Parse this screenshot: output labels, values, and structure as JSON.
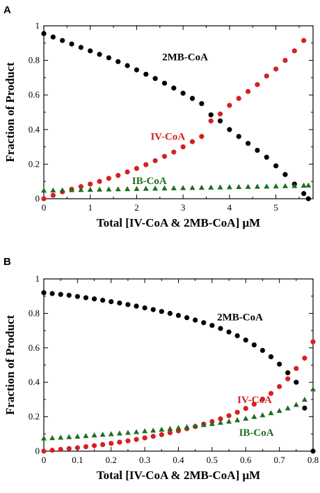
{
  "chart_data": [
    {
      "type": "scatter",
      "panel": "A",
      "xlabel": "Total [IV-CoA & 2MB-CoA] μM",
      "ylabel": "Fraction of Product",
      "xlim": [
        0,
        5.8
      ],
      "ylim": [
        0,
        1
      ],
      "xticks": [
        0,
        1,
        2,
        3,
        4,
        5
      ],
      "yticks": [
        0,
        0.2,
        0.4,
        0.6,
        0.8,
        1
      ],
      "tick_labels_x": [
        "0",
        "1",
        "2",
        "3",
        "4",
        "5"
      ],
      "tick_labels_y": [
        "0",
        "0.2",
        "0.4",
        "0.6",
        "0.8",
        "1"
      ],
      "grid": false,
      "series": [
        {
          "name": "2MB-CoA",
          "marker": "circle",
          "color": "#000000",
          "x": [
            0,
            0.2,
            0.4,
            0.6,
            0.8,
            1.0,
            1.2,
            1.4,
            1.6,
            1.8,
            2.0,
            2.2,
            2.4,
            2.6,
            2.8,
            3.0,
            3.2,
            3.4,
            3.6,
            3.8,
            4.0,
            4.2,
            4.4,
            4.6,
            4.8,
            5.0,
            5.2,
            5.4,
            5.6,
            5.7
          ],
          "y": [
            0.955,
            0.935,
            0.915,
            0.895,
            0.875,
            0.855,
            0.835,
            0.815,
            0.793,
            0.77,
            0.745,
            0.72,
            0.695,
            0.668,
            0.64,
            0.61,
            0.58,
            0.55,
            0.485,
            0.45,
            0.4,
            0.36,
            0.32,
            0.28,
            0.24,
            0.19,
            0.14,
            0.085,
            0.03,
            0.0
          ]
        },
        {
          "name": "IV-CoA",
          "marker": "circle",
          "color": "#d62020",
          "x": [
            0,
            0.2,
            0.4,
            0.6,
            0.8,
            1.0,
            1.2,
            1.4,
            1.6,
            1.8,
            2.0,
            2.2,
            2.4,
            2.6,
            2.8,
            3.0,
            3.2,
            3.4,
            3.6,
            3.8,
            4.0,
            4.2,
            4.4,
            4.6,
            4.8,
            5.0,
            5.2,
            5.4,
            5.6
          ],
          "y": [
            0.0,
            0.02,
            0.04,
            0.055,
            0.07,
            0.085,
            0.1,
            0.118,
            0.135,
            0.155,
            0.175,
            0.197,
            0.22,
            0.245,
            0.27,
            0.3,
            0.33,
            0.36,
            0.45,
            0.49,
            0.54,
            0.58,
            0.62,
            0.66,
            0.71,
            0.75,
            0.8,
            0.855,
            0.915
          ]
        },
        {
          "name": "IB-CoA",
          "marker": "triangle",
          "color": "#1e6e1e",
          "x": [
            0,
            0.2,
            0.4,
            0.6,
            0.8,
            1.0,
            1.2,
            1.4,
            1.6,
            1.8,
            2.0,
            2.2,
            2.4,
            2.6,
            2.8,
            3.0,
            3.2,
            3.4,
            3.6,
            3.8,
            4.0,
            4.2,
            4.4,
            4.6,
            4.8,
            5.0,
            5.2,
            5.4,
            5.6,
            5.7
          ],
          "y": [
            0.048,
            0.049,
            0.05,
            0.051,
            0.052,
            0.053,
            0.054,
            0.055,
            0.056,
            0.057,
            0.058,
            0.059,
            0.06,
            0.061,
            0.062,
            0.063,
            0.064,
            0.065,
            0.066,
            0.067,
            0.068,
            0.069,
            0.07,
            0.071,
            0.072,
            0.073,
            0.074,
            0.075,
            0.077,
            0.078
          ]
        }
      ],
      "annotations": [
        {
          "text": "2MB-CoA",
          "x": 2.55,
          "y": 0.8,
          "color": "#000000"
        },
        {
          "text": "IV-CoA",
          "x": 2.3,
          "y": 0.34,
          "color": "#d62020"
        },
        {
          "text": "IB-CoA",
          "x": 1.9,
          "y": 0.085,
          "color": "#1e6e1e"
        }
      ]
    },
    {
      "type": "scatter",
      "panel": "B",
      "xlabel": "Total [IV-CoA & 2MB-CoA] μM",
      "ylabel": "Fraction of Product",
      "xlim": [
        0,
        0.8
      ],
      "ylim": [
        0,
        1
      ],
      "xticks": [
        0,
        0.1,
        0.2,
        0.3,
        0.4,
        0.5,
        0.6,
        0.7,
        0.8
      ],
      "yticks": [
        0,
        0.2,
        0.4,
        0.6,
        0.8,
        1
      ],
      "tick_labels_x": [
        "0",
        "0.1",
        "0.2",
        "0.3",
        "0.4",
        "0.5",
        "0.6",
        "0.7",
        "0.8"
      ],
      "tick_labels_y": [
        "0",
        "0.2",
        "0.4",
        "0.6",
        "0.8",
        "1"
      ],
      "grid": false,
      "series": [
        {
          "name": "2MB-CoA",
          "marker": "circle",
          "color": "#000000",
          "x": [
            0,
            0.025,
            0.05,
            0.075,
            0.1,
            0.125,
            0.15,
            0.175,
            0.2,
            0.225,
            0.25,
            0.275,
            0.3,
            0.325,
            0.35,
            0.375,
            0.4,
            0.425,
            0.45,
            0.475,
            0.5,
            0.525,
            0.55,
            0.575,
            0.6,
            0.625,
            0.65,
            0.675,
            0.7,
            0.725,
            0.75,
            0.775,
            0.8
          ],
          "y": [
            0.92,
            0.915,
            0.91,
            0.905,
            0.898,
            0.891,
            0.884,
            0.876,
            0.868,
            0.86,
            0.851,
            0.842,
            0.832,
            0.822,
            0.811,
            0.8,
            0.788,
            0.775,
            0.761,
            0.746,
            0.73,
            0.712,
            0.692,
            0.67,
            0.645,
            0.617,
            0.585,
            0.548,
            0.505,
            0.455,
            0.4,
            0.25,
            0.0
          ]
        },
        {
          "name": "IV-CoA",
          "marker": "circle",
          "color": "#d62020",
          "x": [
            0,
            0.025,
            0.05,
            0.075,
            0.1,
            0.125,
            0.15,
            0.175,
            0.2,
            0.225,
            0.25,
            0.275,
            0.3,
            0.325,
            0.35,
            0.375,
            0.4,
            0.425,
            0.45,
            0.475,
            0.5,
            0.525,
            0.55,
            0.575,
            0.6,
            0.625,
            0.65,
            0.675,
            0.7,
            0.725,
            0.75,
            0.775,
            0.8
          ],
          "y": [
            0.0,
            0.005,
            0.01,
            0.015,
            0.02,
            0.026,
            0.032,
            0.038,
            0.045,
            0.052,
            0.06,
            0.068,
            0.077,
            0.086,
            0.096,
            0.107,
            0.118,
            0.13,
            0.143,
            0.157,
            0.172,
            0.188,
            0.206,
            0.226,
            0.248,
            0.273,
            0.302,
            0.335,
            0.375,
            0.42,
            0.48,
            0.54,
            0.635
          ]
        },
        {
          "name": "IB-CoA",
          "marker": "triangle",
          "color": "#1e6e1e",
          "x": [
            0,
            0.025,
            0.05,
            0.075,
            0.1,
            0.125,
            0.15,
            0.175,
            0.2,
            0.225,
            0.25,
            0.275,
            0.3,
            0.325,
            0.35,
            0.375,
            0.4,
            0.425,
            0.45,
            0.475,
            0.5,
            0.525,
            0.55,
            0.575,
            0.6,
            0.625,
            0.65,
            0.675,
            0.7,
            0.725,
            0.75,
            0.775,
            0.8
          ],
          "y": [
            0.075,
            0.077,
            0.08,
            0.083,
            0.086,
            0.089,
            0.093,
            0.097,
            0.1,
            0.104,
            0.108,
            0.112,
            0.117,
            0.121,
            0.126,
            0.131,
            0.136,
            0.141,
            0.147,
            0.153,
            0.159,
            0.166,
            0.173,
            0.181,
            0.19,
            0.2,
            0.21,
            0.222,
            0.235,
            0.25,
            0.27,
            0.3,
            0.36
          ]
        }
      ],
      "annotations": [
        {
          "text": "2MB-CoA",
          "x": 0.515,
          "y": 0.76,
          "color": "#000000"
        },
        {
          "text": "IV-CoA",
          "x": 0.575,
          "y": 0.28,
          "color": "#d62020"
        },
        {
          "text": "IB-CoA",
          "x": 0.58,
          "y": 0.09,
          "color": "#1e6e1e"
        }
      ]
    }
  ]
}
